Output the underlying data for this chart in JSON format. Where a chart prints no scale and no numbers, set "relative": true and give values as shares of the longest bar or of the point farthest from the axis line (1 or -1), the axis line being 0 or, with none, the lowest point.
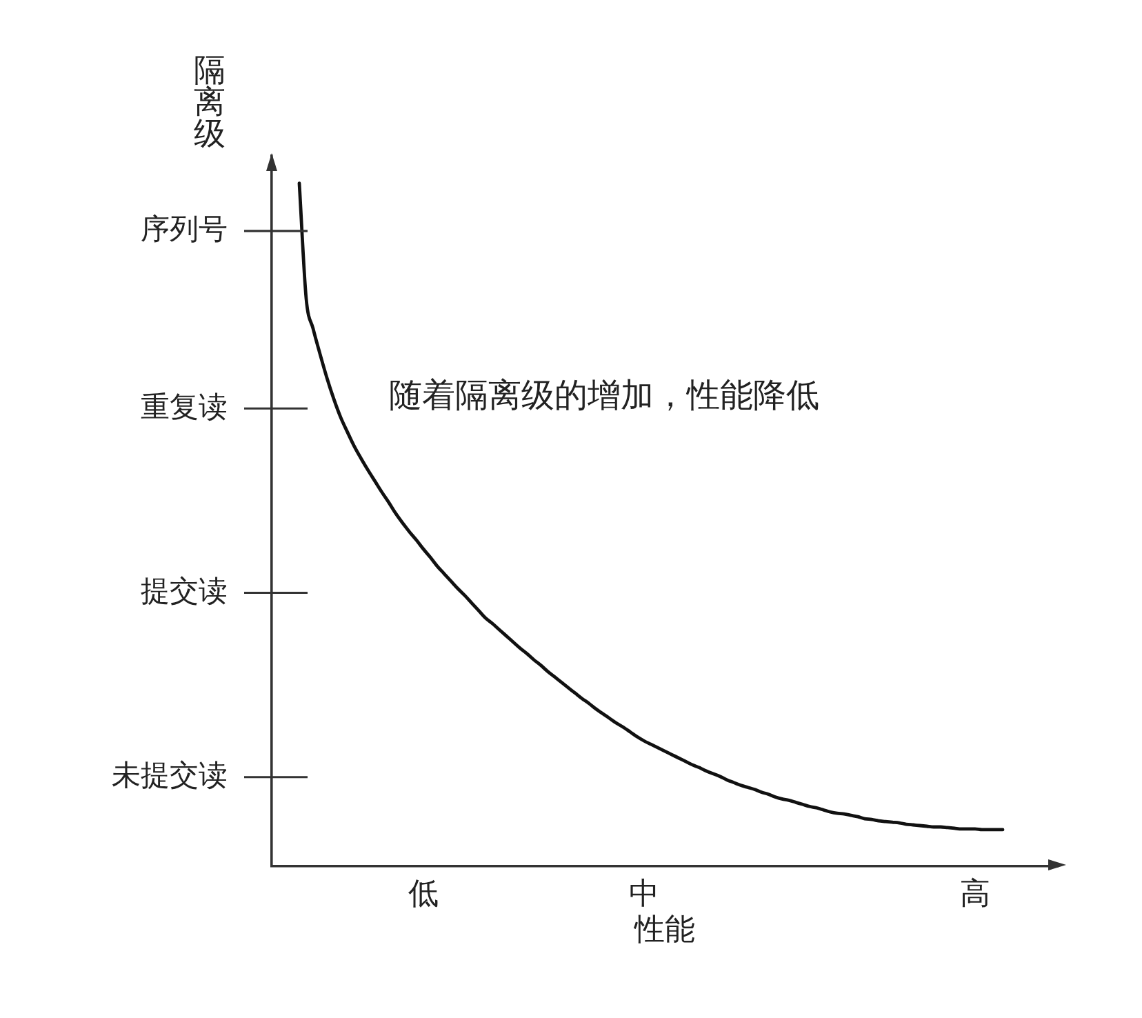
{
  "chart_data": {
    "type": "line",
    "relative": true,
    "xlabel": "性能",
    "ylabel": "隔离级",
    "annotations": [
      "随着隔离级的增加，性能降低"
    ],
    "categories": [
      null,
      null,
      null,
      null,
      null,
      null,
      null,
      null,
      null,
      null,
      null,
      null,
      null,
      null,
      null,
      null,
      null,
      null,
      null,
      null,
      null,
      null,
      "低",
      null,
      null,
      null,
      null,
      null,
      null,
      null,
      null,
      null,
      null,
      null,
      null,
      null,
      null,
      null,
      null,
      null,
      null,
      null,
      null,
      null,
      null,
      null,
      null,
      null,
      null,
      null,
      null,
      null,
      null,
      null,
      "中",
      null,
      null,
      null,
      null,
      null,
      null,
      null,
      null,
      null,
      null,
      null,
      null,
      null,
      null,
      null,
      null,
      null,
      null,
      null,
      null,
      null,
      null,
      null,
      null,
      null,
      null,
      null,
      null,
      null,
      null,
      null,
      null,
      null,
      null,
      null,
      null,
      null,
      null,
      null,
      null,
      null,
      null,
      null,
      null,
      null,
      null,
      null,
      "高",
      null,
      null,
      null,
      null,
      null,
      null,
      null,
      null,
      null,
      null,
      null,
      null
    ],
    "series": [
      {
        "color": "#111111",
        "values": [
          null,
          null,
          null,
          null,
          1.0,
          0.831,
          0.787,
          0.75,
          0.715,
          0.684,
          0.657,
          0.635,
          0.614,
          0.596,
          0.579,
          0.563,
          0.547,
          0.532,
          0.516,
          0.502,
          0.489,
          0.477,
          0.464,
          0.452,
          0.439,
          0.428,
          0.417,
          0.406,
          0.396,
          0.385,
          0.374,
          0.363,
          0.355,
          0.346,
          0.337,
          0.328,
          0.319,
          0.311,
          0.302,
          0.294,
          0.285,
          0.277,
          0.269,
          0.261,
          0.253,
          0.245,
          0.238,
          0.23,
          0.223,
          0.216,
          0.209,
          0.203,
          0.196,
          0.189,
          0.183,
          0.178,
          0.173,
          0.168,
          0.163,
          0.158,
          0.153,
          0.148,
          0.144,
          0.139,
          0.135,
          0.131,
          0.126,
          0.122,
          0.118,
          0.115,
          0.112,
          0.108,
          0.105,
          0.101,
          0.098,
          0.096,
          0.093,
          0.09,
          0.087,
          0.085,
          0.082,
          0.079,
          0.077,
          0.076,
          0.074,
          0.072,
          0.069,
          0.068,
          0.066,
          0.065,
          0.064,
          0.063,
          0.061,
          0.06,
          0.059,
          0.058,
          0.057,
          0.057,
          0.056,
          0.055,
          0.054,
          0.054,
          0.054,
          0.053,
          0.053,
          0.053,
          0.053,
          null,
          null,
          null,
          null,
          null,
          null,
          null,
          null
        ]
      }
    ],
    "ref_lines": [
      {
        "axis": "y",
        "value": 0.13,
        "label": "未提交读"
      },
      {
        "axis": "y",
        "value": 0.4,
        "label": "提交读"
      },
      {
        "axis": "y",
        "value": 0.67,
        "label": "重复读"
      },
      {
        "axis": "y",
        "value": 0.93,
        "label": "序列号"
      }
    ],
    "marker": "none"
  }
}
